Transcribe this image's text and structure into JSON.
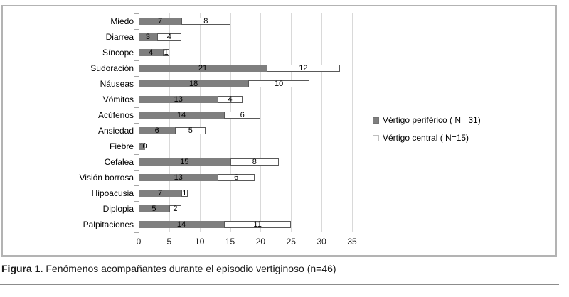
{
  "figure": {
    "caption": {
      "label": "Figura 1.",
      "text": "Fenómenos acompañantes durante el episodio vertiginoso (n=46)"
    }
  },
  "chart_data": {
    "type": "bar",
    "orientation": "horizontal",
    "stacked": true,
    "title": "",
    "xlabel": "",
    "ylabel": "",
    "xlim": [
      0,
      35
    ],
    "xticks": [
      0,
      5,
      10,
      15,
      20,
      25,
      30,
      35
    ],
    "grid": true,
    "legend_position": "center-right",
    "data_labels": true,
    "categories": [
      "Miedo",
      "Diarrea",
      "Síncope",
      "Sudoración",
      "Náuseas",
      "Vómitos",
      "Acúfenos",
      "Ansiedad",
      "Fiebre",
      "Cefalea",
      "Visión borrosa",
      "Hipoacusia",
      "Diplopia",
      "Palpitaciones"
    ],
    "series": [
      {
        "name": "Vértigo periférico ( N= 31)",
        "color": "#7f7f7f",
        "border": "#7f7f7f",
        "values": [
          7,
          3,
          4,
          21,
          18,
          13,
          14,
          6,
          1,
          15,
          13,
          7,
          5,
          14
        ]
      },
      {
        "name": "Vértigo central ( N=15)",
        "color": "#ffffff",
        "border": "#595959",
        "values": [
          8,
          4,
          1,
          12,
          10,
          4,
          6,
          5,
          0,
          8,
          6,
          1,
          2,
          11
        ]
      }
    ],
    "colors": {
      "gridline": "#d9d9d9",
      "tick": "#a6a6a6",
      "axis_text": "#1a1a1a"
    }
  }
}
